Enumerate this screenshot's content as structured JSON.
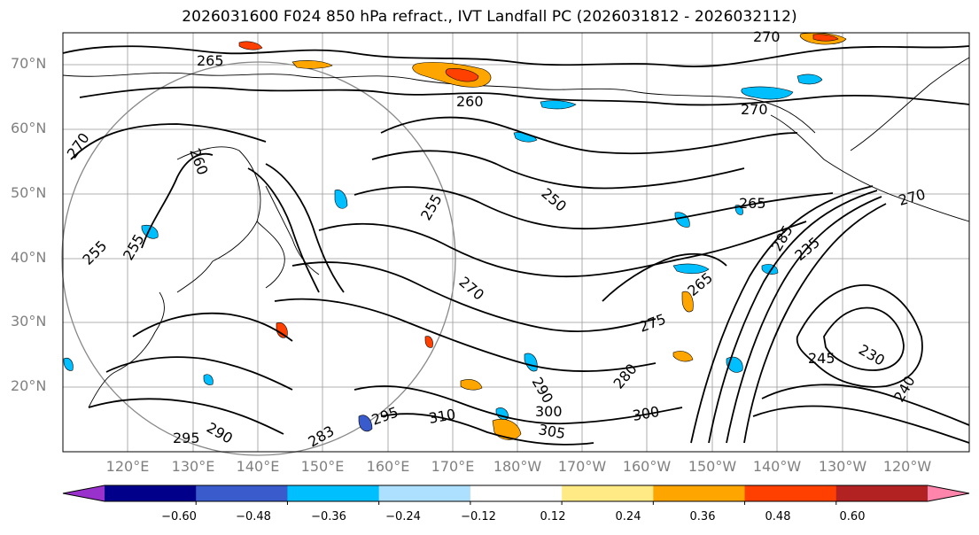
{
  "title": "2026031600 F024 850 hPa refract., IVT Landfall PC (2026031812 - 2026032112)",
  "lat_labels": [
    "70°N",
    "60°N",
    "50°N",
    "40°N",
    "30°N",
    "20°N"
  ],
  "lon_labels": [
    "120°E",
    "130°E",
    "140°E",
    "150°E",
    "160°E",
    "170°E",
    "180°W",
    "170°W",
    "160°W",
    "150°W",
    "140°W",
    "130°W",
    "120°W"
  ],
  "contour_labels": [
    "270",
    "265",
    "260",
    "270",
    "270",
    "260",
    "255",
    "255",
    "250",
    "265",
    "255",
    "270",
    "275",
    "280",
    "285",
    "265",
    "290",
    "295",
    "300",
    "305",
    "310",
    "300",
    "295",
    "290",
    "283",
    "235",
    "245",
    "240",
    "230",
    "270"
  ],
  "colorbar": {
    "ticks": [
      "−0.60",
      "−0.48",
      "−0.36",
      "−0.24",
      "−0.12",
      "0.12",
      "0.24",
      "0.36",
      "0.48",
      "0.60"
    ],
    "colors": [
      "#9932CC",
      "#00008B",
      "#3A5BCB",
      "#00BFFF",
      "#ADDFFF",
      "#FFFFFF",
      "#FFEA86",
      "#FFA500",
      "#FF4000",
      "#B22222",
      "#FF85AD"
    ]
  },
  "colors": {
    "contour": "#000000",
    "grid": "#808080",
    "axis_label": "#808080"
  }
}
